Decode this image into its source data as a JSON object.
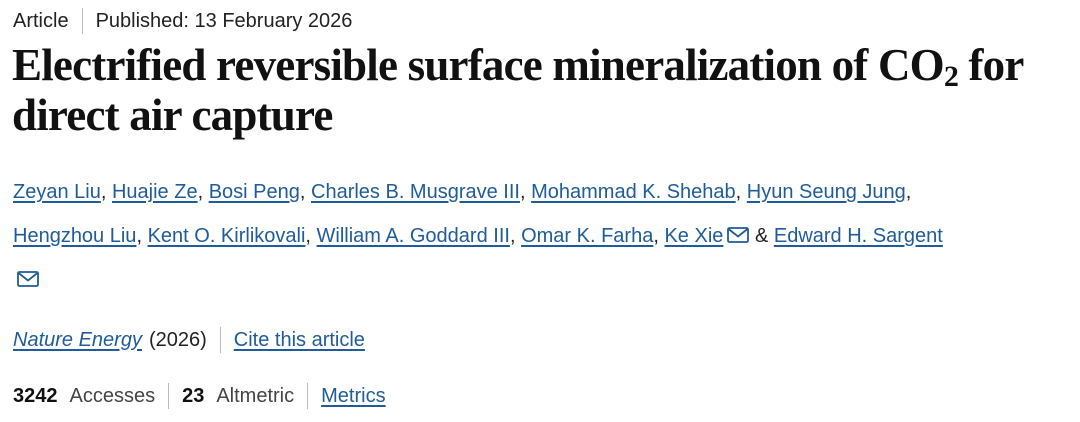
{
  "header": {
    "type": "Article",
    "published": "Published: 13 February 2026"
  },
  "title": {
    "before": "Electrified reversible surface mineralization of CO",
    "subscript": "2",
    "after": " for direct air capture"
  },
  "authors": [
    {
      "name": "Zeyan Liu",
      "corresponding": false
    },
    {
      "name": "Huajie Ze",
      "corresponding": false
    },
    {
      "name": "Bosi Peng",
      "corresponding": false
    },
    {
      "name": "Charles B. Musgrave III",
      "corresponding": false
    },
    {
      "name": "Mohammad K. Shehab",
      "corresponding": false
    },
    {
      "name": "Hyun Seung Jung",
      "corresponding": false
    },
    {
      "name": "Hengzhou Liu",
      "corresponding": false
    },
    {
      "name": "Kent O. Kirlikovali",
      "corresponding": false
    },
    {
      "name": "William A. Goddard III",
      "corresponding": false
    },
    {
      "name": "Omar K. Farha",
      "corresponding": false
    },
    {
      "name": "Ke Xie",
      "corresponding": true
    },
    {
      "name": "Edward H. Sargent",
      "corresponding": true
    }
  ],
  "author_separators": {
    "comma": ",",
    "final": "&"
  },
  "journal": {
    "name": "Nature Energy",
    "year": "(2026)",
    "cite": "Cite this article"
  },
  "metrics": {
    "accesses": 3242,
    "accesses_label": "Accesses",
    "altmetric": 23,
    "altmetric_label": "Altmetric",
    "link": "Metrics"
  }
}
